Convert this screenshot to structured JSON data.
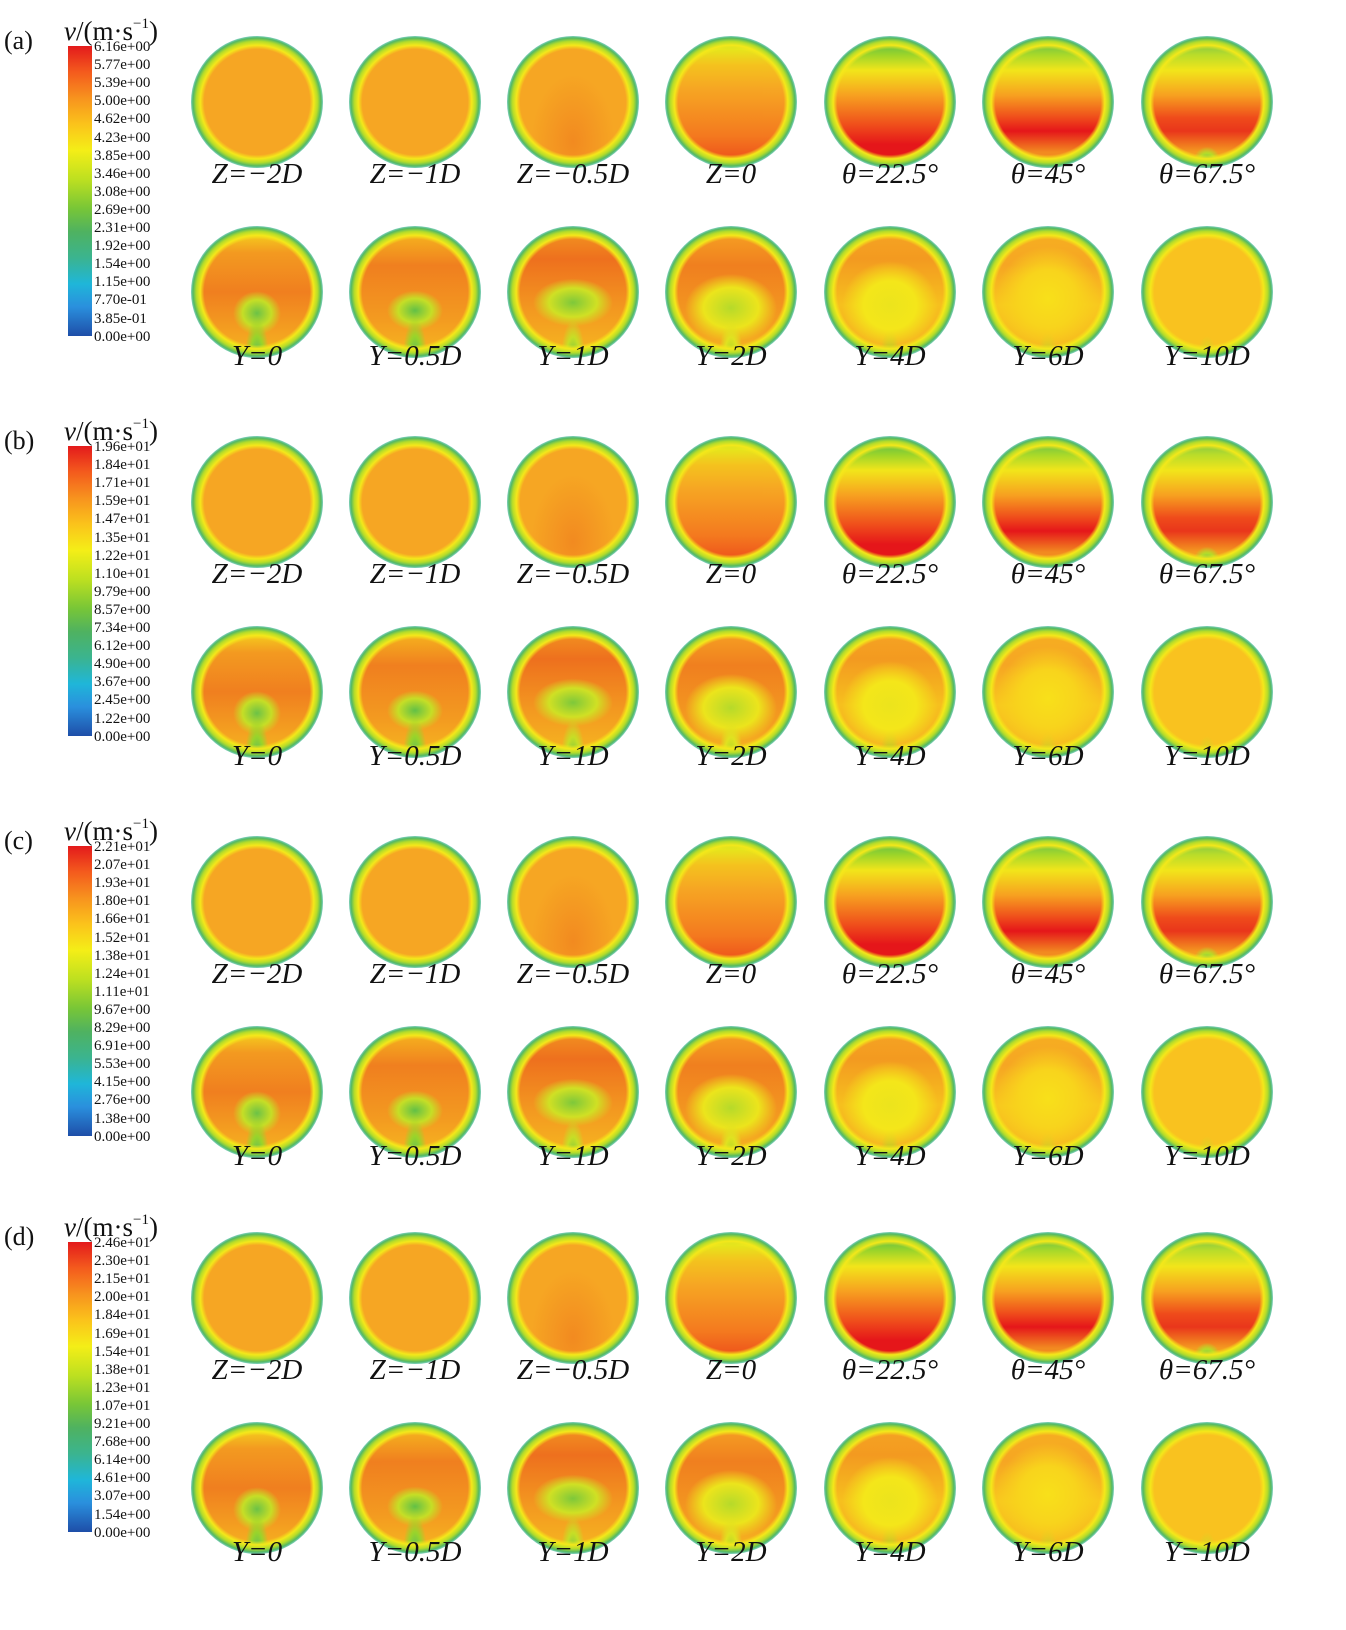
{
  "colors": {
    "inlet": "#f6a623",
    "peak": "#e5161a",
    "wall": "#4fb260",
    "recirc": "#8fcf3a",
    "mixed": "#f9c21f"
  },
  "captions_row1": [
    "Z=−2D",
    "Z=−1D",
    "Z=−0.5D",
    "Z=0",
    "θ=22.5°",
    "θ=45°",
    "θ=67.5°"
  ],
  "captions_row2": [
    "Y=0",
    "Y=0.5D",
    "Y=1D",
    "Y=2D",
    "Y=4D",
    "Y=6D",
    "Y=10D"
  ],
  "panels": [
    {
      "label": "(a)",
      "colorbar_title_var": "v",
      "colorbar_title_unit": "/(m·s",
      "colorbar_title_exp": "−1",
      "colorbar_title_close": ")",
      "ticks": [
        "6.16e+00",
        "5.77e+00",
        "5.39e+00",
        "5.00e+00",
        "4.62e+00",
        "4.23e+00",
        "3.85e+00",
        "3.46e+00",
        "3.08e+00",
        "2.69e+00",
        "2.31e+00",
        "1.92e+00",
        "1.54e+00",
        "1.15e+00",
        "7.70e-01",
        "3.85e-01",
        "0.00e+00"
      ]
    },
    {
      "label": "(b)",
      "colorbar_title_var": "v",
      "colorbar_title_unit": "/(m·s",
      "colorbar_title_exp": "−1",
      "colorbar_title_close": ")",
      "ticks": [
        "1.96e+01",
        "1.84e+01",
        "1.71e+01",
        "1.59e+01",
        "1.47e+01",
        "1.35e+01",
        "1.22e+01",
        "1.10e+01",
        "9.79e+00",
        "8.57e+00",
        "7.34e+00",
        "6.12e+00",
        "4.90e+00",
        "3.67e+00",
        "2.45e+00",
        "1.22e+00",
        "0.00e+00"
      ]
    },
    {
      "label": "(c)",
      "colorbar_title_var": "v",
      "colorbar_title_unit": "/(m·s",
      "colorbar_title_exp": "−1",
      "colorbar_title_close": ")",
      "ticks": [
        "2.21e+01",
        "2.07e+01",
        "1.93e+01",
        "1.80e+01",
        "1.66e+01",
        "1.52e+01",
        "1.38e+01",
        "1.24e+01",
        "1.11e+01",
        "9.67e+00",
        "8.29e+00",
        "6.91e+00",
        "5.53e+00",
        "4.15e+00",
        "2.76e+00",
        "1.38e+00",
        "0.00e+00"
      ]
    },
    {
      "label": "(d)",
      "colorbar_title_var": "v",
      "colorbar_title_unit": "/(m·s",
      "colorbar_title_exp": "−1",
      "colorbar_title_close": ")",
      "ticks": [
        "2.46e+01",
        "2.30e+01",
        "2.15e+01",
        "2.00e+01",
        "1.84e+01",
        "1.69e+01",
        "1.54e+01",
        "1.38e+01",
        "1.23e+01",
        "1.07e+01",
        "9.21e+00",
        "7.68e+00",
        "6.14e+00",
        "4.61e+00",
        "3.07e+00",
        "1.54e+00",
        "0.00e+00"
      ]
    }
  ]
}
